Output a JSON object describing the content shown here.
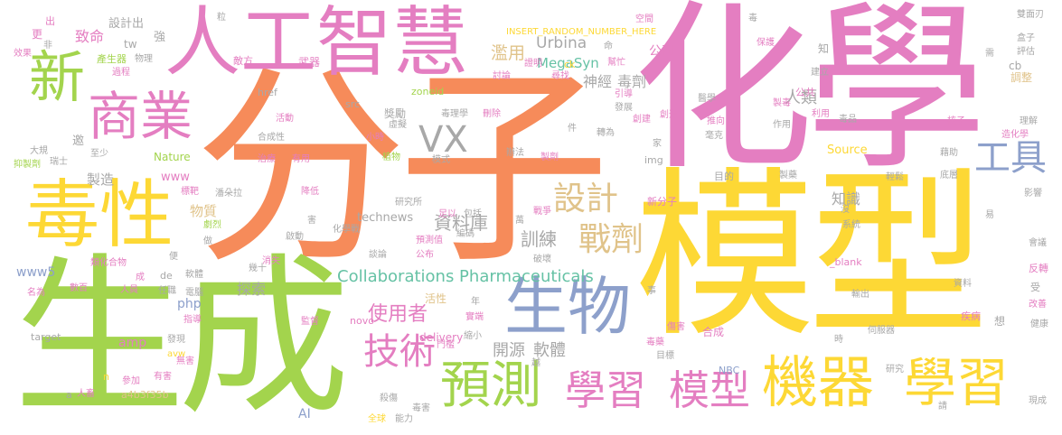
{
  "colors": {
    "orange": "#f68b5a",
    "pink": "#e47ec1",
    "yellow": "#fdd835",
    "green": "#a3d44d",
    "blue": "#8da0cb",
    "gray": "#a8a8a8",
    "tan": "#e0c38a",
    "teal": "#66c2a5"
  },
  "words": [
    {
      "text": "分子",
      "color": "orange"
    },
    {
      "text": "化學",
      "color": "pink"
    },
    {
      "text": "模型",
      "color": "yellow"
    },
    {
      "text": "生成",
      "color": "green"
    },
    {
      "text": "人工智慧",
      "color": "pink"
    },
    {
      "text": "毒性",
      "color": "yellow"
    },
    {
      "text": "生物",
      "color": "blue"
    },
    {
      "text": "新",
      "color": "green"
    },
    {
      "text": "商業",
      "color": "pink"
    },
    {
      "text": "預測",
      "color": "green"
    },
    {
      "text": "學習",
      "color": "pink"
    },
    {
      "text": "模型",
      "color": "pink"
    },
    {
      "text": "機器",
      "color": "yellow"
    },
    {
      "text": "學習",
      "color": "yellow"
    },
    {
      "text": "設計",
      "color": "tan"
    },
    {
      "text": "戰劑",
      "color": "tan"
    },
    {
      "text": "技術",
      "color": "pink"
    },
    {
      "text": "VX",
      "color": "gray"
    },
    {
      "text": "工具",
      "color": "blue"
    },
    {
      "text": "Collaborations Pharmaceuticals",
      "color": "teal"
    },
    {
      "text": "開源",
      "color": "gray"
    },
    {
      "text": "軟體",
      "color": "gray"
    },
    {
      "text": "資料庫",
      "color": "gray"
    },
    {
      "text": "訓練",
      "color": "gray"
    },
    {
      "text": "使用者",
      "color": "pink"
    },
    {
      "text": "探索",
      "color": "gray"
    },
    {
      "text": "知識",
      "color": "gray"
    },
    {
      "text": "人類",
      "color": "gray"
    },
    {
      "text": "神經",
      "color": "gray"
    },
    {
      "text": "毒劑",
      "color": "gray"
    },
    {
      "text": "Urbina",
      "color": "gray"
    },
    {
      "text": "MegaSyn",
      "color": "teal"
    },
    {
      "text": "濫用",
      "color": "tan"
    },
    {
      "text": "公司",
      "color": "pink"
    },
    {
      "text": "INSERT_RANDOM_NUMBER_HERE",
      "color": "yellow"
    },
    {
      "text": "致命",
      "color": "pink"
    },
    {
      "text": "設計出",
      "color": "gray"
    },
    {
      "text": "製造",
      "color": "gray"
    },
    {
      "text": "物質",
      "color": "tan"
    },
    {
      "text": "technews",
      "color": "gray"
    },
    {
      "text": "www5",
      "color": "blue"
    },
    {
      "text": "www",
      "color": "pink"
    },
    {
      "text": "php",
      "color": "blue"
    },
    {
      "text": "amp",
      "color": "pink"
    },
    {
      "text": "delivery",
      "color": "pink"
    },
    {
      "text": "AI",
      "color": "blue"
    },
    {
      "text": "Source",
      "color": "yellow"
    },
    {
      "text": "Nature",
      "color": "green"
    },
    {
      "text": "zoneid",
      "color": "green"
    },
    {
      "text": "href",
      "color": "gray"
    },
    {
      "text": "src",
      "color": "gray"
    },
    {
      "text": "img",
      "color": "gray"
    },
    {
      "text": "cb",
      "color": "gray"
    },
    {
      "text": "ck",
      "color": "yellow"
    },
    {
      "text": "tw",
      "color": "gray"
    },
    {
      "text": "de",
      "color": "gray"
    },
    {
      "text": "_blank",
      "color": "pink"
    },
    {
      "text": "a4b3f35b",
      "color": "tan"
    },
    {
      "text": "NBC",
      "color": "blue"
    },
    {
      "text": "novo",
      "color": "pink"
    },
    {
      "text": "target",
      "color": "gray"
    },
    {
      "text": "n",
      "color": "yellow"
    },
    {
      "text": "a",
      "color": "gray"
    },
    {
      "text": "強",
      "color": "gray"
    },
    {
      "text": "武器",
      "color": "pink"
    },
    {
      "text": "敵方",
      "color": "pink"
    },
    {
      "text": "物理",
      "color": "gray"
    },
    {
      "text": "產生器",
      "color": "green"
    },
    {
      "text": "過程",
      "color": "pink"
    },
    {
      "text": "效果",
      "color": "pink"
    },
    {
      "text": "更",
      "color": "pink"
    },
    {
      "text": "非",
      "color": "gray"
    },
    {
      "text": "出",
      "color": "pink"
    },
    {
      "text": "粒",
      "color": "gray"
    },
    {
      "text": "雙面刃",
      "color": "gray"
    },
    {
      "text": "盒子",
      "color": "gray"
    },
    {
      "text": "評估",
      "color": "gray"
    },
    {
      "text": "調整",
      "color": "tan"
    },
    {
      "text": "理解",
      "color": "gray"
    },
    {
      "text": "核子",
      "color": "pink"
    },
    {
      "text": "藉助",
      "color": "gray"
    },
    {
      "text": "毒品",
      "color": "gray"
    },
    {
      "text": "製藥",
      "color": "gray"
    },
    {
      "text": "底層",
      "color": "gray"
    },
    {
      "text": "輕鬆",
      "color": "gray"
    },
    {
      "text": "影響",
      "color": "gray"
    },
    {
      "text": "易",
      "color": "gray"
    },
    {
      "text": "會議",
      "color": "gray"
    },
    {
      "text": "反轉",
      "color": "pink"
    },
    {
      "text": "受",
      "color": "gray"
    },
    {
      "text": "改善",
      "color": "pink"
    },
    {
      "text": "健康",
      "color": "gray"
    },
    {
      "text": "現成",
      "color": "gray"
    },
    {
      "text": "研究",
      "color": "gray"
    },
    {
      "text": "疾病",
      "color": "pink"
    },
    {
      "text": "想",
      "color": "gray"
    },
    {
      "text": "資料",
      "color": "gray"
    },
    {
      "text": "伺服器",
      "color": "gray"
    },
    {
      "text": "輸出",
      "color": "gray"
    },
    {
      "text": "系統",
      "color": "gray"
    },
    {
      "text": "沒",
      "color": "gray"
    },
    {
      "text": "傷害",
      "color": "pink"
    },
    {
      "text": "合成",
      "color": "pink"
    },
    {
      "text": "毒藥",
      "color": "pink"
    },
    {
      "text": "目標",
      "color": "gray"
    },
    {
      "text": "時",
      "color": "gray"
    },
    {
      "text": "新分子",
      "color": "pink"
    },
    {
      "text": "目的",
      "color": "gray"
    },
    {
      "text": "作用",
      "color": "gray"
    },
    {
      "text": "毫克",
      "color": "gray"
    },
    {
      "text": "推向",
      "color": "pink"
    },
    {
      "text": "創造",
      "color": "pink"
    },
    {
      "text": "創建",
      "color": "pink"
    },
    {
      "text": "發展",
      "color": "gray"
    },
    {
      "text": "引導",
      "color": "pink"
    },
    {
      "text": "醫學",
      "color": "gray"
    },
    {
      "text": "製毒",
      "color": "pink"
    },
    {
      "text": "利用",
      "color": "pink"
    },
    {
      "text": "造化學",
      "color": "pink"
    },
    {
      "text": "建立",
      "color": "gray"
    },
    {
      "text": "保護",
      "color": "pink"
    },
    {
      "text": "需",
      "color": "gray"
    },
    {
      "text": "毒",
      "color": "gray"
    },
    {
      "text": "知",
      "color": "gray"
    },
    {
      "text": "公共",
      "color": "pink"
    },
    {
      "text": "空間",
      "color": "pink"
    },
    {
      "text": "命",
      "color": "gray"
    },
    {
      "text": "幫忙",
      "color": "pink"
    },
    {
      "text": "證明",
      "color": "pink"
    },
    {
      "text": "尋找",
      "color": "pink"
    },
    {
      "text": "討論",
      "color": "pink"
    },
    {
      "text": "毒理學",
      "color": "gray"
    },
    {
      "text": "刪除",
      "color": "pink"
    },
    {
      "text": "獎勵",
      "color": "gray"
    },
    {
      "text": "虛擬",
      "color": "gray"
    },
    {
      "text": "小時",
      "color": "pink"
    },
    {
      "text": "植物",
      "color": "green"
    },
    {
      "text": "模式",
      "color": "gray"
    },
    {
      "text": "辦法",
      "color": "gray"
    },
    {
      "text": "件",
      "color": "gray"
    },
    {
      "text": "轉為",
      "color": "gray"
    },
    {
      "text": "家",
      "color": "gray"
    },
    {
      "text": "製劑",
      "color": "pink"
    },
    {
      "text": "研究所",
      "color": "gray"
    },
    {
      "text": "萬",
      "color": "gray"
    },
    {
      "text": "戰爭",
      "color": "pink"
    },
    {
      "text": "包括",
      "color": "gray"
    },
    {
      "text": "足以",
      "color": "pink"
    },
    {
      "text": "編碼",
      "color": "gray"
    },
    {
      "text": "預測值",
      "color": "pink"
    },
    {
      "text": "公布",
      "color": "pink"
    },
    {
      "text": "破壞",
      "color": "gray"
    },
    {
      "text": "活性",
      "color": "tan"
    },
    {
      "text": "年",
      "color": "gray"
    },
    {
      "text": "實端",
      "color": "pink"
    },
    {
      "text": "門檻",
      "color": "pink"
    },
    {
      "text": "縮小",
      "color": "gray"
    },
    {
      "text": "越",
      "color": "gray"
    },
    {
      "text": "化學戰",
      "color": "gray"
    },
    {
      "text": "談論",
      "color": "gray"
    },
    {
      "text": "有用",
      "color": "pink"
    },
    {
      "text": "活動",
      "color": "pink"
    },
    {
      "text": "合成性",
      "color": "gray"
    },
    {
      "text": "治療",
      "color": "pink"
    },
    {
      "text": "降低",
      "color": "pink"
    },
    {
      "text": "潘朵拉",
      "color": "gray"
    },
    {
      "text": "害",
      "color": "gray"
    },
    {
      "text": "啟動",
      "color": "gray"
    },
    {
      "text": "幾十",
      "color": "gray"
    },
    {
      "text": "消失",
      "color": "pink"
    },
    {
      "text": "電腦",
      "color": "gray"
    },
    {
      "text": "監督",
      "color": "pink"
    },
    {
      "text": "殺傷",
      "color": "gray"
    },
    {
      "text": "毒害",
      "color": "gray"
    },
    {
      "text": "能力",
      "color": "gray"
    },
    {
      "text": "全球",
      "color": "yellow"
    },
    {
      "text": "人畜",
      "color": "pink"
    },
    {
      "text": "有害",
      "color": "pink"
    },
    {
      "text": "參加",
      "color": "pink"
    },
    {
      "text": "無害",
      "color": "pink"
    },
    {
      "text": "發現",
      "color": "gray"
    },
    {
      "text": "指導",
      "color": "pink"
    },
    {
      "text": "任職",
      "color": "gray"
    },
    {
      "text": "人員",
      "color": "pink"
    },
    {
      "text": "數百",
      "color": "pink"
    },
    {
      "text": "名為",
      "color": "pink"
    },
    {
      "text": "成",
      "color": "pink"
    },
    {
      "text": "便",
      "color": "gray"
    },
    {
      "text": "軟體",
      "color": "gray"
    },
    {
      "text": "類化合物",
      "color": "pink"
    },
    {
      "text": "劇烈",
      "color": "green"
    },
    {
      "text": "標靶",
      "color": "pink"
    },
    {
      "text": "做",
      "color": "gray"
    },
    {
      "text": "抑製劑",
      "color": "green"
    },
    {
      "text": "瑞士",
      "color": "gray"
    },
    {
      "text": "大規",
      "color": "gray"
    },
    {
      "text": "至少",
      "color": "gray"
    },
    {
      "text": "邀",
      "color": "gray"
    },
    {
      "text": "請",
      "color": "gray"
    },
    {
      "text": "事",
      "color": "gray"
    },
    {
      "text": "avw",
      "color": "yellow"
    }
  ]
}
